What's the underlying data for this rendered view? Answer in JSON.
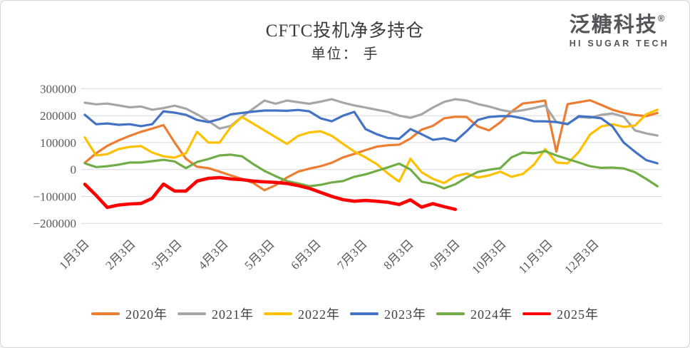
{
  "header": {
    "title": "CFTC投机净多持仓",
    "subtitle": "单位： 手"
  },
  "logo": {
    "name_zh": "泛糖科技",
    "trademark": "®",
    "name_en": "HI SUGAR TECH"
  },
  "chart_data": {
    "type": "line",
    "title": "CFTC投机净多持仓",
    "unit_label": "单位： 手",
    "x_tick_labels": [
      "1月3日",
      "2月3日",
      "3月3日",
      "4月3日",
      "5月3日",
      "6月3日",
      "7月3日",
      "8月3日",
      "9月3日",
      "10月3日",
      "11月3日",
      "12月3日"
    ],
    "y_ticks": [
      300000,
      200000,
      100000,
      0,
      -100000,
      -200000
    ],
    "ylim": [
      -200000,
      300000
    ],
    "grid": "horizontal-only",
    "legend_position": "bottom",
    "x_frequency": "weekly",
    "colors": {
      "grid": "#d9d9d9",
      "axis_text": "#595959",
      "title_text": "#3b3b3b",
      "logo_text": "#55565a"
    },
    "series": [
      {
        "name": "2020年",
        "color": "#ED7D31",
        "width": 3.2,
        "values": [
          25000,
          60000,
          88000,
          108000,
          125000,
          140000,
          152000,
          165000,
          100000,
          40000,
          10000,
          5000,
          -8000,
          -22000,
          -35000,
          -50000,
          -77000,
          -58000,
          -30000,
          -8000,
          3000,
          12000,
          25000,
          45000,
          58000,
          72000,
          85000,
          90000,
          92000,
          115000,
          148000,
          162000,
          190000,
          196000,
          195000,
          160000,
          145000,
          175000,
          215000,
          245000,
          250000,
          256000,
          66000,
          243000,
          250000,
          257000,
          240000,
          222000,
          210000,
          202000,
          198000,
          210000
        ]
      },
      {
        "name": "2021年",
        "color": "#A6A6A6",
        "width": 3.2,
        "values": [
          248000,
          242000,
          245000,
          238000,
          231000,
          234000,
          222000,
          228000,
          237000,
          226000,
          205000,
          180000,
          152000,
          162000,
          196000,
          226000,
          256000,
          244000,
          256000,
          250000,
          244000,
          252000,
          261000,
          248000,
          238000,
          230000,
          222000,
          214000,
          200000,
          192000,
          205000,
          230000,
          251000,
          261000,
          256000,
          243000,
          234000,
          222000,
          214000,
          220000,
          228000,
          238000,
          176000,
          170000,
          195000,
          192000,
          203000,
          208000,
          196000,
          145000,
          134000,
          126000
        ]
      },
      {
        "name": "2022年",
        "color": "#FFC000",
        "width": 3.2,
        "values": [
          119000,
          52000,
          57000,
          76000,
          84000,
          87000,
          63000,
          49000,
          44000,
          60000,
          140000,
          100000,
          100000,
          158000,
          195000,
          170000,
          145000,
          120000,
          95000,
          125000,
          138000,
          142000,
          125000,
          95000,
          67000,
          45000,
          20000,
          -15000,
          -45000,
          40000,
          -10000,
          -35000,
          -50000,
          -25000,
          -15000,
          -30000,
          -22000,
          -8000,
          -27000,
          -17000,
          18000,
          76000,
          26000,
          23000,
          65000,
          130000,
          160000,
          168000,
          158000,
          163000,
          205000,
          222000
        ]
      },
      {
        "name": "2023年",
        "color": "#4472C4",
        "width": 3.2,
        "values": [
          203000,
          168000,
          171000,
          166000,
          168000,
          161000,
          168000,
          216000,
          211000,
          203000,
          184000,
          176000,
          187000,
          205000,
          210000,
          215000,
          219000,
          219000,
          218000,
          221000,
          216000,
          190000,
          179000,
          200000,
          214000,
          150000,
          131000,
          117000,
          114000,
          150000,
          131000,
          110000,
          116000,
          105000,
          142000,
          184000,
          195000,
          198000,
          198000,
          190000,
          179000,
          179000,
          176000,
          168000,
          198000,
          195000,
          190000,
          160000,
          100000,
          66000,
          35000,
          23000
        ]
      },
      {
        "name": "2024年",
        "color": "#70AD47",
        "width": 3.2,
        "values": [
          23000,
          9000,
          12000,
          18000,
          26000,
          26000,
          31000,
          36000,
          30000,
          5000,
          28000,
          39000,
          52000,
          55000,
          49000,
          20000,
          -5000,
          -25000,
          -43000,
          -52000,
          -62000,
          -57000,
          -48000,
          -43000,
          -27000,
          -18000,
          -5000,
          8000,
          22000,
          0,
          -45000,
          -53000,
          -70000,
          -55000,
          -30000,
          -9000,
          -1000,
          5000,
          45000,
          63000,
          60000,
          68000,
          52000,
          39000,
          26000,
          12000,
          6000,
          7000,
          4000,
          -10000,
          -35000,
          -62000
        ]
      },
      {
        "name": "2025年",
        "color": "#FF0000",
        "width": 4.6,
        "values": [
          -55000,
          -96000,
          -141000,
          -132000,
          -128000,
          -126000,
          -107000,
          -54000,
          -80000,
          -80000,
          -43000,
          -33000,
          -30000,
          -35000,
          -38000,
          -43000,
          -46000,
          -48000,
          -52000,
          -60000,
          -70000,
          -85000,
          -100000,
          -112000,
          -118000,
          -115000,
          -118000,
          -122000,
          -130000,
          -113000,
          -140000,
          -127000,
          -138000,
          -148000
        ]
      }
    ]
  }
}
